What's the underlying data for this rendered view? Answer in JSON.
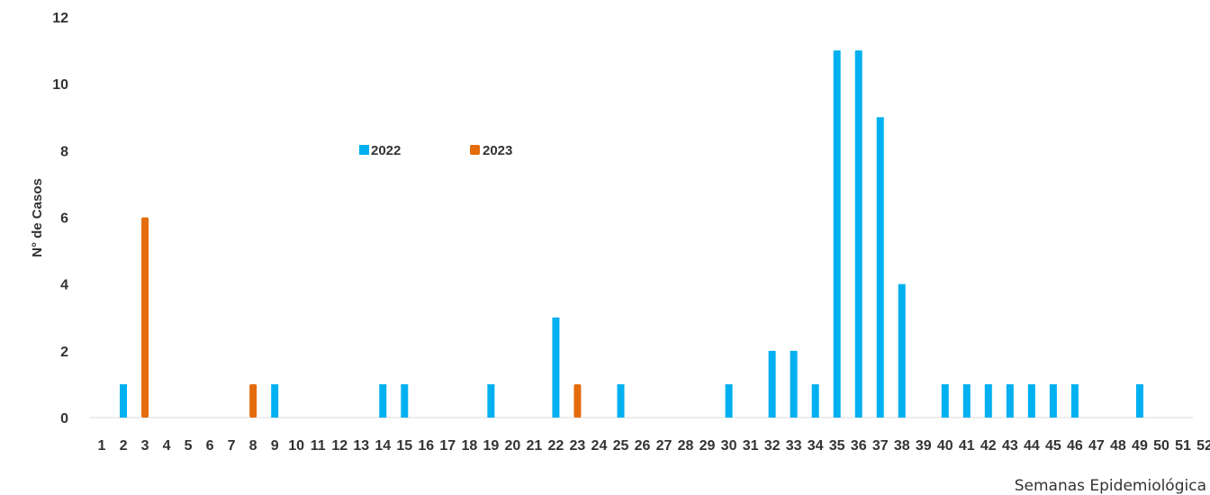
{
  "chart_data": {
    "type": "bar",
    "ylabel": "N° de Casos",
    "xlabel": "Semanas Epidemiológica",
    "ylim": [
      0,
      12
    ],
    "yticks": [
      0,
      2,
      4,
      6,
      8,
      10,
      12
    ],
    "grid": false,
    "legend_placement": "top-center",
    "categories": [
      "1",
      "2",
      "3",
      "4",
      "5",
      "6",
      "7",
      "8",
      "9",
      "10",
      "11",
      "12",
      "13",
      "14",
      "15",
      "16",
      "17",
      "18",
      "19",
      "20",
      "21",
      "22",
      "23",
      "24",
      "25",
      "26",
      "27",
      "28",
      "29",
      "30",
      "31",
      "32",
      "33",
      "34",
      "35",
      "36",
      "37",
      "38",
      "39",
      "40",
      "41",
      "42",
      "43",
      "44",
      "45",
      "46",
      "47",
      "48",
      "49",
      "50",
      "51",
      "52"
    ],
    "series": [
      {
        "name": "2022",
        "color": "#00b0f0",
        "values": [
          0,
          1,
          0,
          0,
          0,
          0,
          0,
          0,
          1,
          0,
          0,
          0,
          0,
          1,
          1,
          0,
          0,
          0,
          1,
          0,
          0,
          3,
          0,
          0,
          1,
          0,
          0,
          0,
          0,
          1,
          0,
          2,
          2,
          1,
          11,
          11,
          9,
          4,
          0,
          1,
          1,
          1,
          1,
          1,
          1,
          1,
          0,
          0,
          1,
          0,
          0,
          0
        ]
      },
      {
        "name": "2023",
        "color": "#e46c0a",
        "values": [
          0,
          0,
          6,
          0,
          0,
          0,
          0,
          1,
          0,
          0,
          0,
          0,
          0,
          0,
          0,
          0,
          0,
          0,
          0,
          0,
          0,
          0,
          1,
          0,
          0,
          0,
          0,
          0,
          0,
          0,
          0,
          0,
          0,
          0,
          0,
          0,
          0,
          0,
          0,
          0,
          0,
          0,
          0,
          0,
          0,
          0,
          0,
          0,
          0,
          0,
          0,
          0
        ]
      }
    ]
  }
}
